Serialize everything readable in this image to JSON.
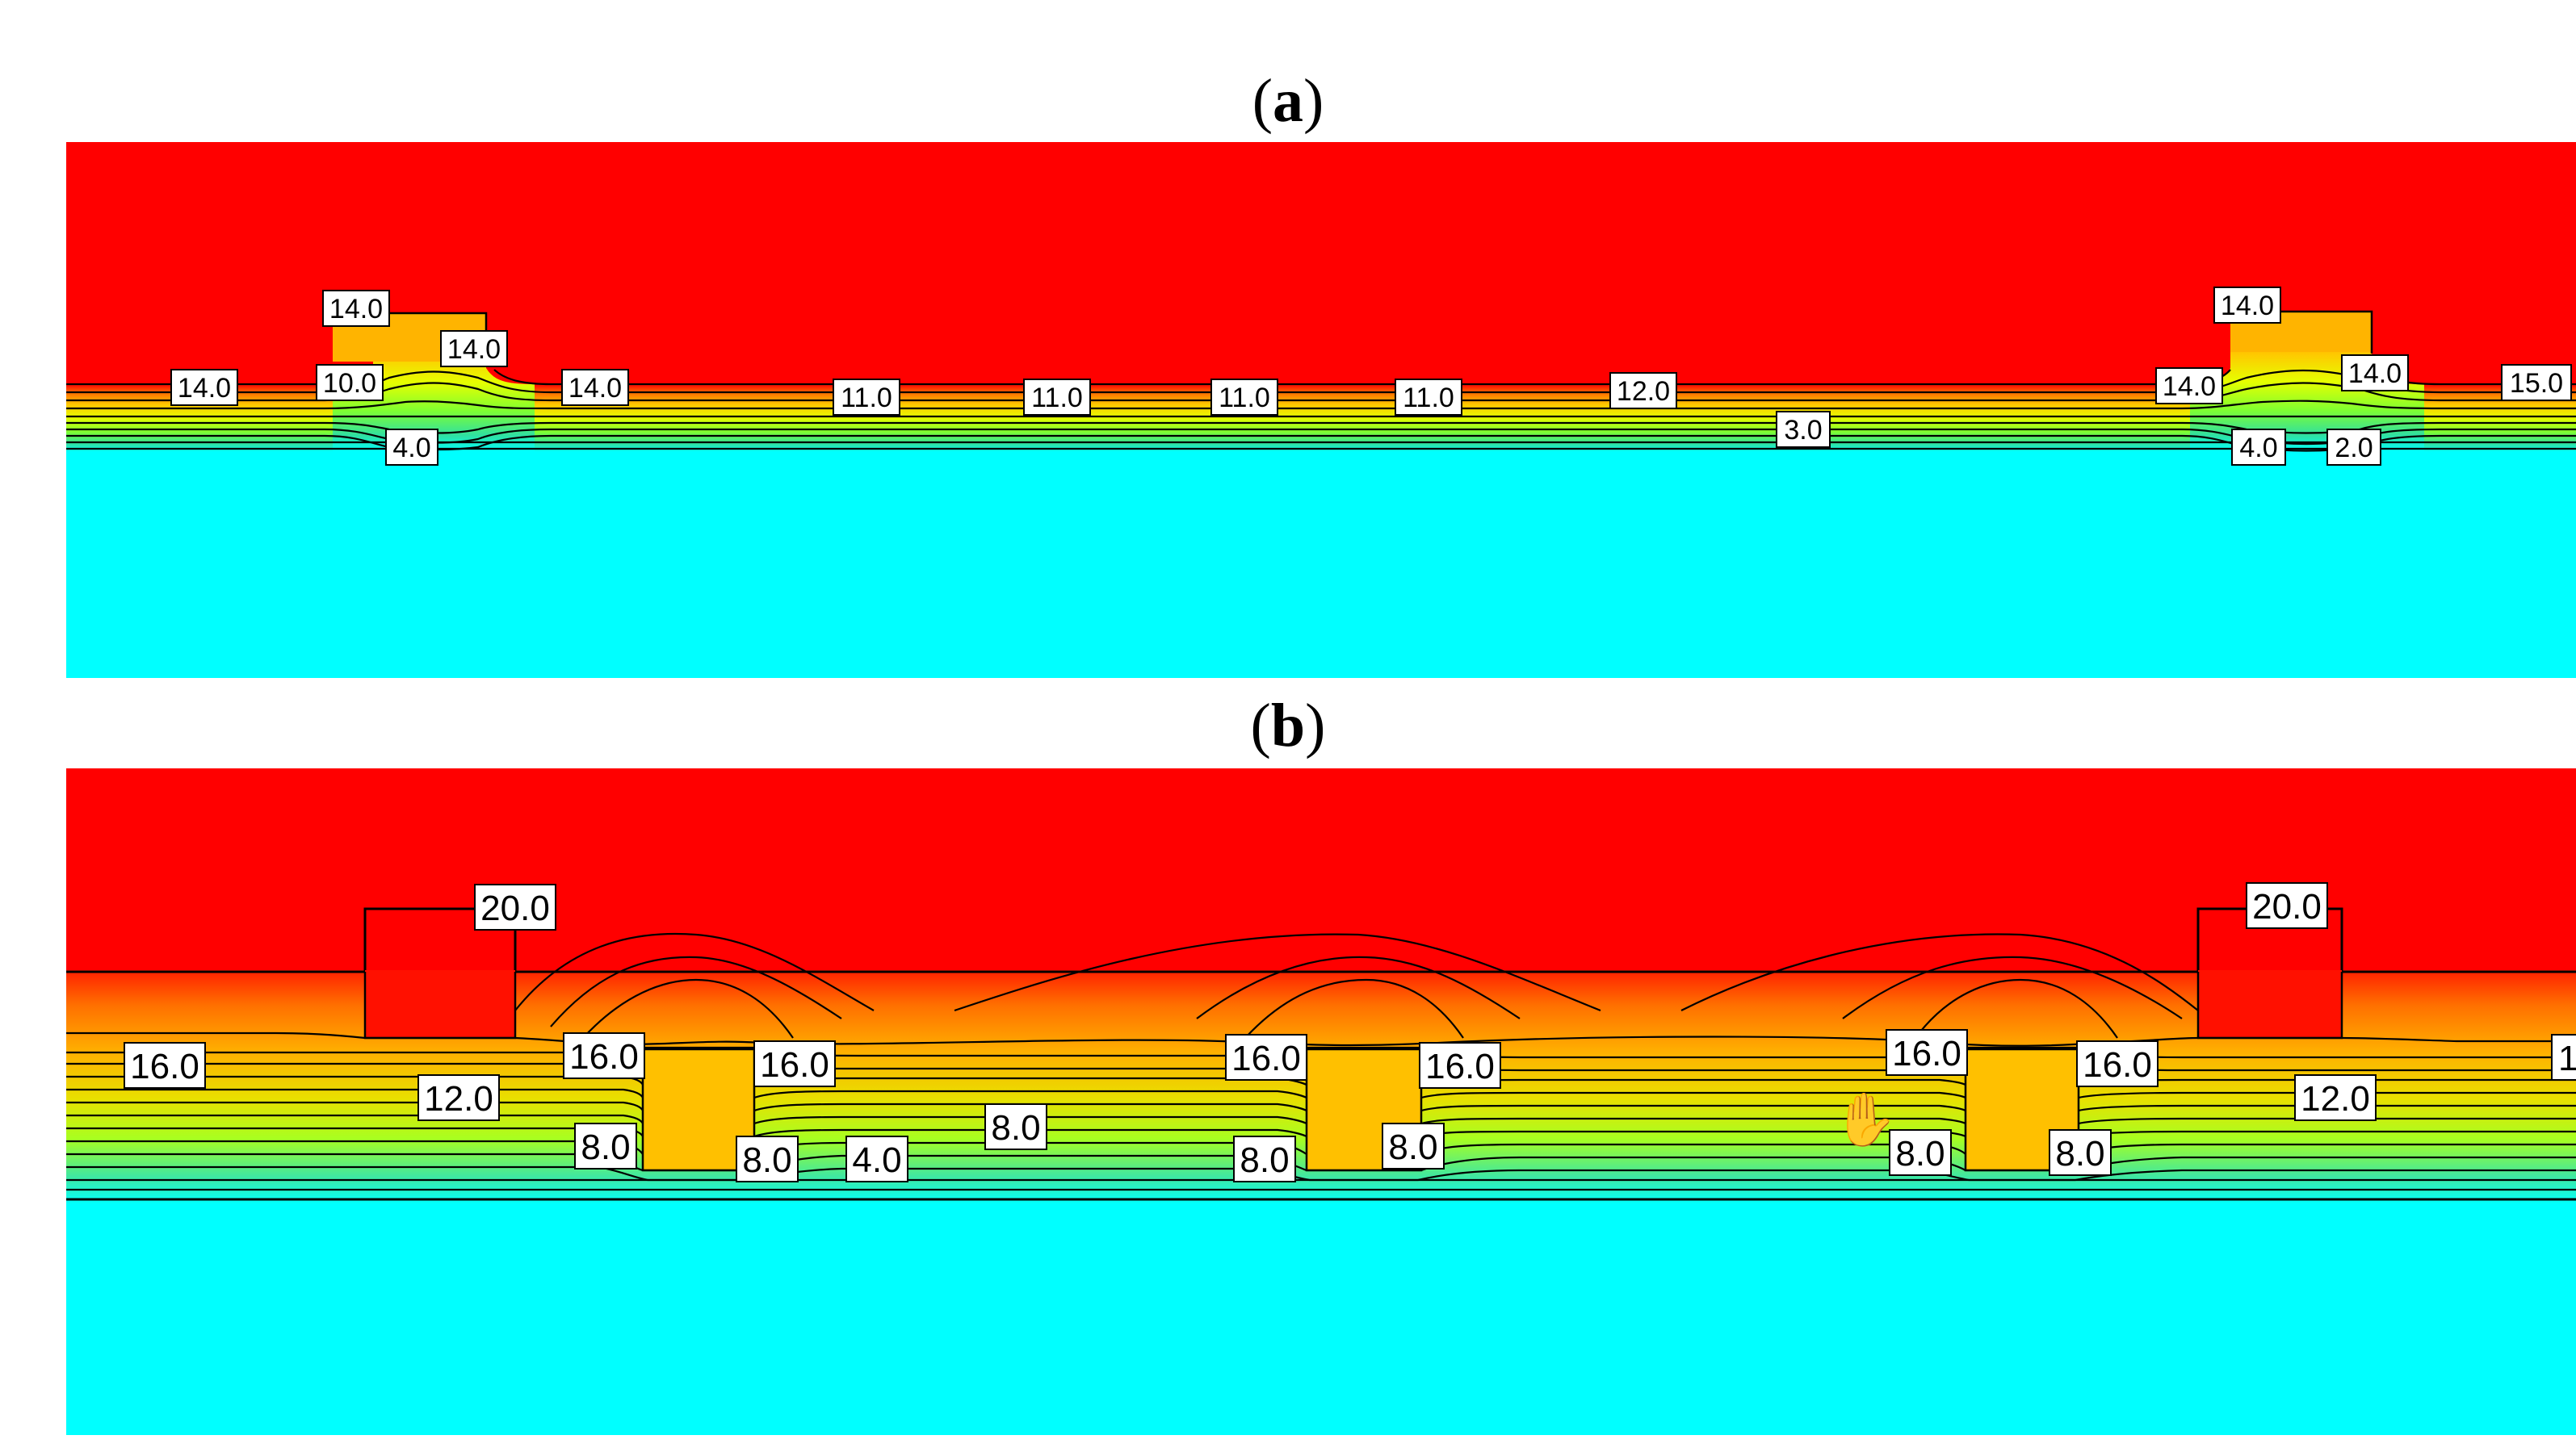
{
  "panels": [
    {
      "id": "a",
      "letter": "a",
      "labels": [
        "14.0",
        "14.0",
        "14.0",
        "10.0",
        "14.0",
        "4.0",
        "11.0",
        "11.0",
        "11.0",
        "11.0",
        "12.0",
        "3.0",
        "14.0",
        "14.0",
        "14.0",
        "15.0",
        "4.0",
        "2.0"
      ]
    },
    {
      "id": "b",
      "letter": "b",
      "labels": [
        "20.0",
        "16.0",
        "12.0",
        "16.0",
        "16.0",
        "8.0",
        "8.0",
        "4.0",
        "8.0",
        "16.0",
        "16.0",
        "8.0",
        "8.0",
        "16.0",
        "16.0",
        "8.0",
        "8.0",
        "12.0",
        "20.0",
        "1"
      ]
    }
  ],
  "colors": {
    "hot": "#ff0000",
    "cold": "#00ffff",
    "warm_block": "#ffc000"
  },
  "cursor_icon": "hand-cursor-icon"
}
